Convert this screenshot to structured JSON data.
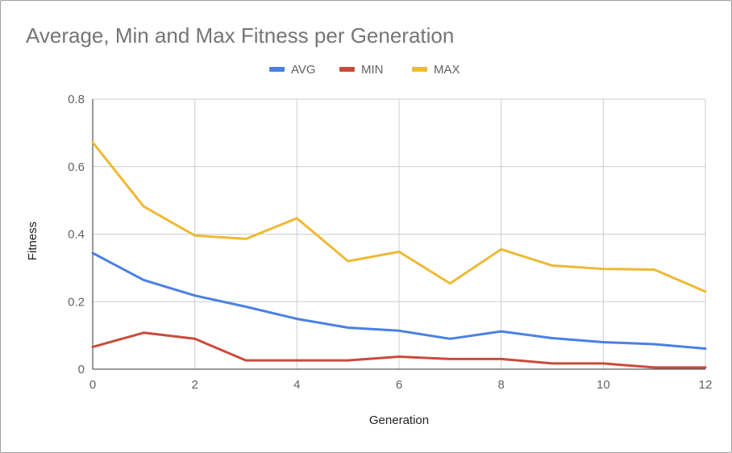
{
  "chart_data": {
    "type": "line",
    "title": "Average, Min and Max Fitness per Generation",
    "xlabel": "Generation",
    "ylabel": "Fitness",
    "xlim": [
      0,
      12
    ],
    "ylim": [
      0,
      0.8
    ],
    "x_ticks": [
      "0",
      "2",
      "4",
      "6",
      "8",
      "10",
      "12"
    ],
    "y_ticks": [
      "0",
      "0.2",
      "0.4",
      "0.6",
      "0.8"
    ],
    "grid": true,
    "legend_position": "top",
    "x": [
      0,
      1,
      2,
      3,
      4,
      5,
      6,
      7,
      8,
      9,
      10,
      11,
      12
    ],
    "series": [
      {
        "name": "AVG",
        "color": "#4a80e2",
        "values": [
          0.344,
          0.264,
          0.218,
          0.185,
          0.149,
          0.123,
          0.114,
          0.09,
          0.112,
          0.092,
          0.08,
          0.074,
          0.061
        ]
      },
      {
        "name": "MIN",
        "color": "#c94b3b",
        "values": [
          0.066,
          0.108,
          0.09,
          0.026,
          0.026,
          0.026,
          0.037,
          0.03,
          0.03,
          0.017,
          0.017,
          0.005,
          0.005
        ]
      },
      {
        "name": "MAX",
        "color": "#eeb935",
        "values": [
          0.672,
          0.482,
          0.396,
          0.386,
          0.447,
          0.32,
          0.348,
          0.254,
          0.355,
          0.307,
          0.297,
          0.295,
          0.23
        ]
      }
    ]
  }
}
